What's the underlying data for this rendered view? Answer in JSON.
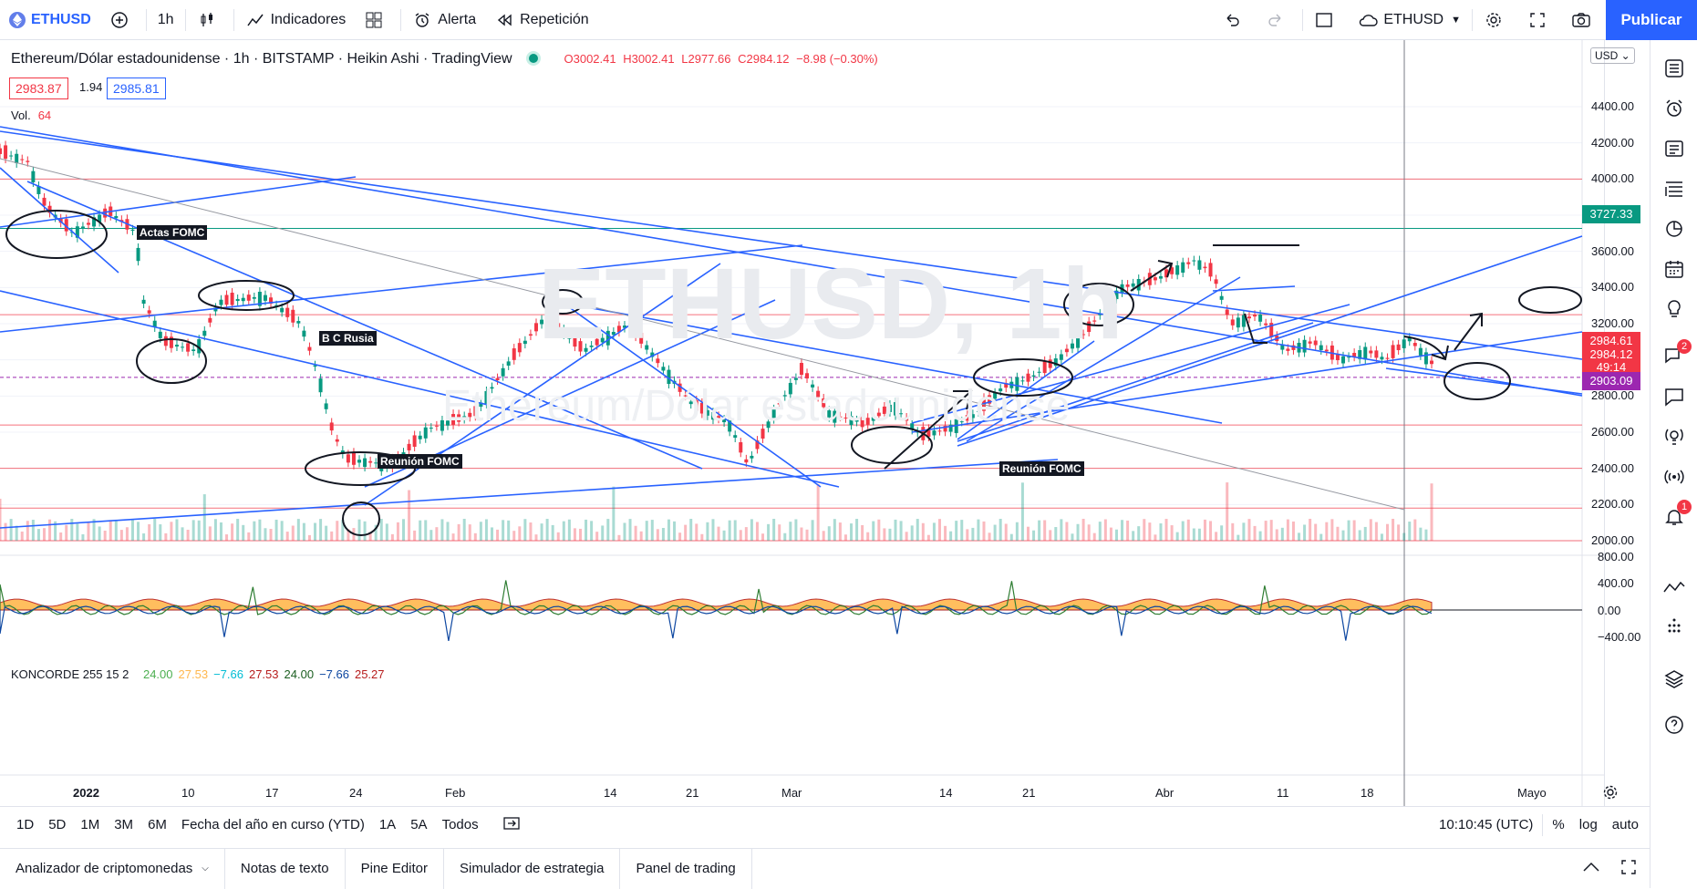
{
  "toolbar": {
    "symbol": "ETHUSD",
    "interval": "1h",
    "indicators_label": "Indicadores",
    "alert_label": "Alerta",
    "replay_label": "Repetición",
    "compare_symbol": "ETHUSD",
    "publish_label": "Publicar"
  },
  "legend": {
    "title": "Ethereum/Dólar estadounidense · 1h · BITSTAMP · Heikin Ashi · TradingView",
    "open": "O3002.41",
    "high": "H3002.41",
    "low": "L2977.66",
    "close": "C2984.12",
    "change": "−8.98 (−0.30%)",
    "bid": "2983.87",
    "spread": "1.94",
    "ask": "2985.81",
    "vol_label": "Vol.",
    "vol_value": "64"
  },
  "watermark": {
    "main": "ETHUSD, 1h",
    "sub": "Ethereum/Dólar estadounidense"
  },
  "annotations": [
    "Actas FOMC",
    "B C Rusia",
    "Reunión FOMC",
    "Reunión FOMC"
  ],
  "price_axis": {
    "currency": "USD",
    "ticks": [
      "4400.00",
      "4200.00",
      "4000.00",
      "3800.00",
      "3600.00",
      "3400.00",
      "3200.00",
      "3000.00",
      "2800.00",
      "2600.00",
      "2400.00",
      "2200.00",
      "2000.00"
    ],
    "tags": [
      {
        "value": "3727.33",
        "color": "#089981"
      },
      {
        "value": "2984.61",
        "color": "#f23645"
      },
      {
        "value": "2984.12",
        "color": "#f23645"
      },
      {
        "value": "49:14",
        "color": "#f23645"
      },
      {
        "value": "2903.09",
        "color": "#9c27b0"
      }
    ]
  },
  "indicator": {
    "name": "KONCORDE 255 15 2",
    "values": [
      {
        "v": "24.00",
        "color": "#4caf50"
      },
      {
        "v": "27.53",
        "color": "#ffb74d"
      },
      {
        "v": "−7.66",
        "color": "#00bcd4"
      },
      {
        "v": "27.53",
        "color": "#b71c1c"
      },
      {
        "v": "24.00",
        "color": "#1b5e20"
      },
      {
        "v": "−7.66",
        "color": "#0d47a1"
      },
      {
        "v": "25.27",
        "color": "#b71c1c"
      }
    ],
    "ticks": [
      "800.00",
      "400.00",
      "0.00",
      "−400.00"
    ]
  },
  "time_axis": [
    "2022",
    "10",
    "17",
    "24",
    "Feb",
    "14",
    "21",
    "Mar",
    "14",
    "21",
    "Abr",
    "11",
    "18",
    "Mayo"
  ],
  "bottom": {
    "ranges": [
      "1D",
      "5D",
      "1M",
      "3M",
      "6M",
      "Fecha del año en curso (YTD)",
      "1A",
      "5A",
      "Todos"
    ],
    "clock": "10:10:45 (UTC)",
    "pct": "%",
    "log": "log",
    "auto": "auto"
  },
  "panels": [
    "Analizador de criptomonedas",
    "Notas de texto",
    "Pine Editor",
    "Simulador de estrategia",
    "Panel de trading"
  ],
  "sidebar_badges": {
    "ideas": "2",
    "notifications": "1"
  },
  "colors": {
    "accent": "#2962ff",
    "up": "#089981",
    "down": "#f23645",
    "drawing": "#2962ff"
  }
}
